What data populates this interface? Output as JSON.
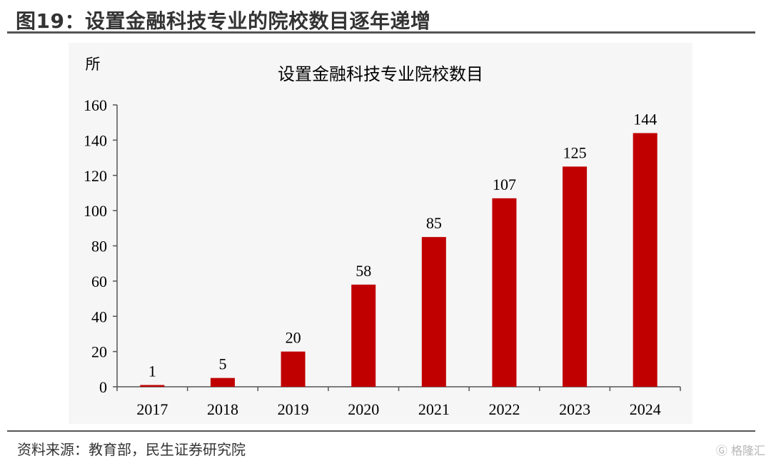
{
  "header": {
    "figure_title": "图19：设置金融科技专业的院校数目逐年递增"
  },
  "footer": {
    "source": "资料来源：教育部，民生证券研究院",
    "watermark": "格隆汇"
  },
  "colors": {
    "bar": "#c00000",
    "axis": "#555555",
    "text": "#000000"
  },
  "chart_data": {
    "type": "bar",
    "title": "设置金融科技专业院校数目",
    "ylabel": "所",
    "xlabel": "",
    "categories": [
      "2017",
      "2018",
      "2019",
      "2020",
      "2021",
      "2022",
      "2023",
      "2024"
    ],
    "values": [
      1,
      5,
      20,
      58,
      85,
      107,
      125,
      144
    ],
    "data_labels": [
      "1",
      "5",
      "20",
      "58",
      "85",
      "107",
      "125",
      "144"
    ],
    "ylim": [
      0,
      160
    ],
    "yticks": [
      0,
      20,
      40,
      60,
      80,
      100,
      120,
      140,
      160
    ],
    "ytick_labels": [
      "0",
      "20",
      "40",
      "60",
      "80",
      "100",
      "120",
      "140",
      "160"
    ],
    "grid": false,
    "legend": "none"
  }
}
